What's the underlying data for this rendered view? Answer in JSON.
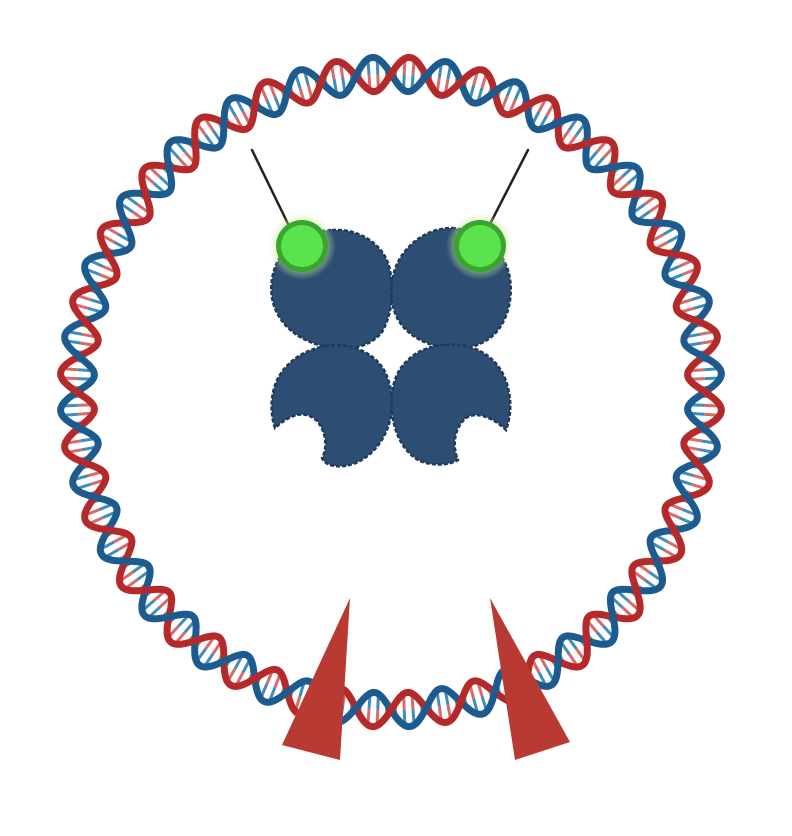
{
  "diagram": {
    "colors": {
      "strand_a": "#b42a2a",
      "strand_b": "#1d5b8e",
      "rung_a": "#d86a6a",
      "rung_b": "#3f8dbf",
      "protein_body": "#2d4e72",
      "protein_outline": "#1f3a5a",
      "fluorophore": "#5be34d",
      "fluorophore_ring": "#3aa52c",
      "fluorophore_glow": "#c8f29a",
      "tether": "#222222",
      "cut_marker": "#b93a32"
    },
    "icons": {
      "dna": "circular-plasmid-dna-icon",
      "protein": "tetrameric-protein-complex-icon",
      "label": "fluorescent-label-icon",
      "marker": "cut-site-wedge-icon"
    },
    "dna_helical_turns": 28,
    "protein_subunit_count": 4,
    "labeled_subunit_count": 2,
    "cut_site_marker_count": 2
  }
}
